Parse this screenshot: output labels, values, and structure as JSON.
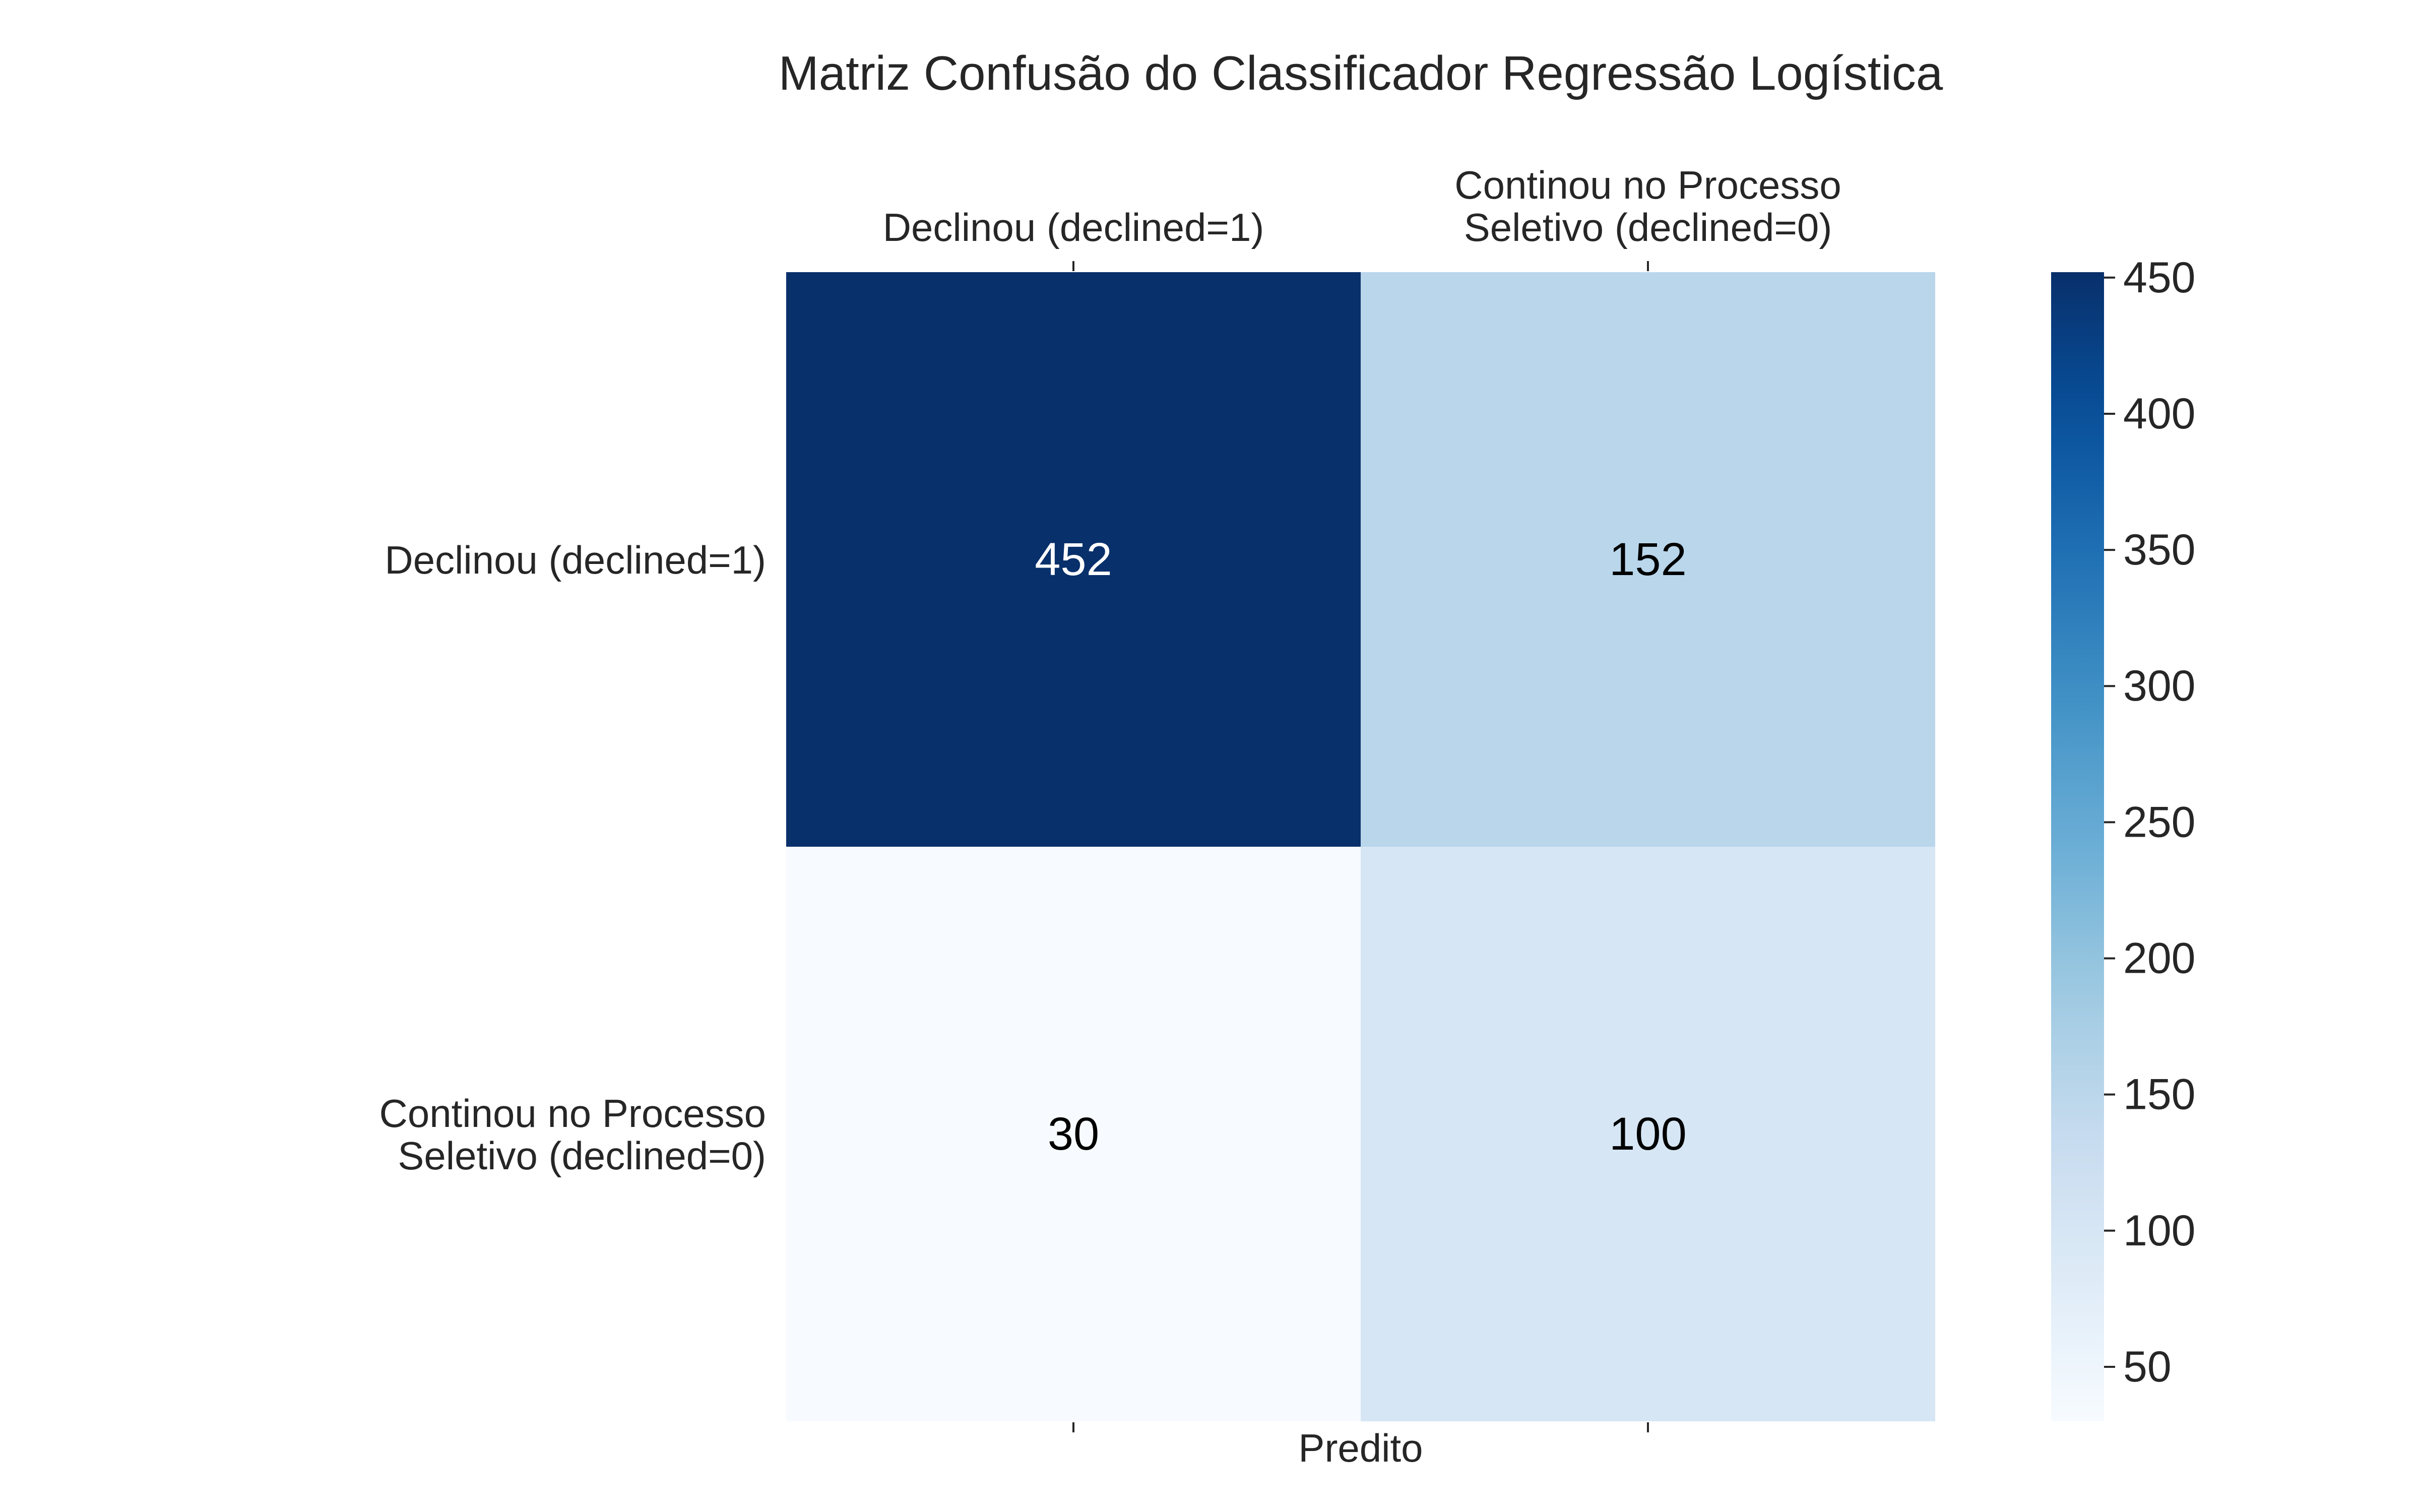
{
  "chart_data": {
    "type": "heatmap",
    "title": "Matriz Confusão do Classificador Regressão Logística",
    "xlabel": "Predito",
    "ylabel": "",
    "x_categories": [
      [
        "Declinou (declined=1)"
      ],
      [
        "Continou no Processo",
        "Seletivo (declined=0)"
      ]
    ],
    "y_categories": [
      [
        "Declinou (declined=1)"
      ],
      [
        "Continou no Processo",
        "Seletivo (declined=0)"
      ]
    ],
    "values": [
      [
        452,
        152
      ],
      [
        30,
        100
      ]
    ],
    "x_axis_position": "top",
    "colormap": "Blues",
    "color_range": [
      30,
      452
    ],
    "colorbar_ticks": [
      50,
      100,
      150,
      200,
      250,
      300,
      350,
      400,
      450
    ],
    "grid": false
  }
}
